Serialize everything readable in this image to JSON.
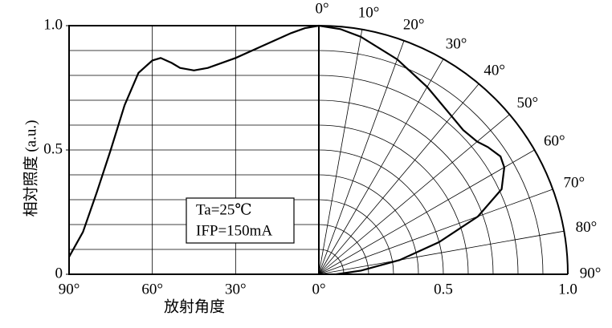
{
  "chart_data": [
    {
      "type": "line",
      "ylabel": "相対照度 (a.u.)",
      "xlabel": "放射角度",
      "x": [
        90,
        85,
        80,
        75,
        70,
        65,
        60,
        57,
        53,
        50,
        45,
        40,
        30,
        20,
        10,
        5,
        0
      ],
      "series": [
        {
          "color": "#000000",
          "values": [
            0.07,
            0.17,
            0.33,
            0.5,
            0.68,
            0.81,
            0.86,
            0.87,
            0.85,
            0.83,
            0.82,
            0.83,
            0.87,
            0.92,
            0.97,
            0.99,
            1.0
          ]
        }
      ],
      "xlim": [
        90,
        0
      ],
      "xticks": [
        {
          "value": 90,
          "label": "90°"
        },
        {
          "value": 60,
          "label": "60°"
        },
        {
          "value": 30,
          "label": "30°"
        },
        {
          "value": 0,
          "label": "0°"
        }
      ],
      "ylim": [
        0,
        1
      ],
      "yticks": [
        0,
        0.5,
        {
          "value": 1,
          "label": "1.0"
        }
      ],
      "ygrid": [
        0.1,
        0.2,
        0.3,
        0.4,
        0.5,
        0.6,
        0.7,
        0.8,
        0.9
      ],
      "annotations": [
        "Ta=25℃",
        "IFP=150mA"
      ]
    },
    {
      "type": "polar",
      "theta": [
        90,
        85,
        80,
        75,
        70,
        65,
        60,
        57,
        53,
        50,
        45,
        40,
        30,
        20,
        10,
        5,
        0
      ],
      "series": [
        {
          "color": "#000000",
          "values": [
            0.07,
            0.17,
            0.33,
            0.5,
            0.68,
            0.81,
            0.86,
            0.87,
            0.85,
            0.83,
            0.82,
            0.83,
            0.87,
            0.92,
            0.97,
            0.99,
            1.0
          ]
        }
      ],
      "rlim": [
        0,
        1
      ],
      "rticks": [
        {
          "value": 0.5,
          "label": "0.5"
        },
        {
          "value": 1,
          "label": "1.0"
        }
      ],
      "rgrid": [
        0.1,
        0.2,
        0.3,
        0.4,
        0.5,
        0.6,
        0.7,
        0.8,
        0.9
      ],
      "thetaticks": [
        {
          "value": 0,
          "label": "0°"
        },
        {
          "value": 10,
          "label": "10°"
        },
        {
          "value": 20,
          "label": "20°"
        },
        {
          "value": 30,
          "label": "30°"
        },
        {
          "value": 40,
          "label": "40°"
        },
        {
          "value": 50,
          "label": "50°"
        },
        {
          "value": 60,
          "label": "60°"
        },
        {
          "value": 70,
          "label": "70°"
        },
        {
          "value": 80,
          "label": "80°"
        },
        {
          "value": 90,
          "label": "90°"
        }
      ]
    }
  ]
}
